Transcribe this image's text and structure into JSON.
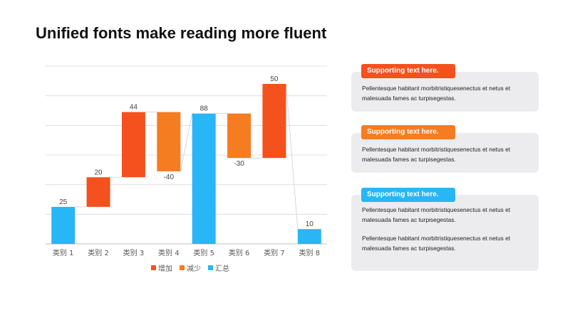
{
  "title": "Unified fonts make reading more fluent",
  "colors": {
    "increase": "#f4511e",
    "decrease": "#f57c20",
    "total": "#29b6f6",
    "grid": "#d9d9d9",
    "card_bg": "#ececee"
  },
  "chart_data": {
    "type": "bar",
    "subtype": "waterfall",
    "categories": [
      "类别 1",
      "类别 2",
      "类别 3",
      "类别 4",
      "类别 5",
      "类别 6",
      "类别 7",
      "类别 8"
    ],
    "values": [
      25,
      20,
      44,
      -40,
      88,
      -30,
      50,
      10
    ],
    "data_labels": [
      "25",
      "20",
      "44",
      "-40",
      "88",
      "-30",
      "50",
      "10"
    ],
    "kinds": [
      "total",
      "increase",
      "increase",
      "decrease",
      "total",
      "decrease",
      "increase",
      "total"
    ],
    "ylim": [
      0,
      120
    ],
    "grid": true,
    "legend_position": "bottom",
    "legend": [
      {
        "name": "增加",
        "kind": "increase"
      },
      {
        "name": "减少",
        "kind": "decrease"
      },
      {
        "name": "汇总",
        "kind": "total"
      }
    ],
    "title": "",
    "xlabel": "",
    "ylabel": ""
  },
  "cards": [
    {
      "tag": "Supporting text here.",
      "tag_color": "#f4511e",
      "paragraphs": [
        "Pellentesque habitant morbitristiquesenectus et netus et malesuada fames ac turpisegestas."
      ]
    },
    {
      "tag": "Supporting text here.",
      "tag_color": "#f57c20",
      "paragraphs": [
        "Pellentesque habitant morbitristiquesenectus et netus et malesuada fames ac turpisegestas."
      ]
    },
    {
      "tag": "Supporting text here.",
      "tag_color": "#29b6f6",
      "paragraphs": [
        "Pellentesque habitant morbitristiquesenectus et netus et malesuada fames ac turpisegestas.",
        "Pellentesque habitant morbitristiquesenectus et netus et malesuada fames ac turpisegestas."
      ]
    }
  ]
}
